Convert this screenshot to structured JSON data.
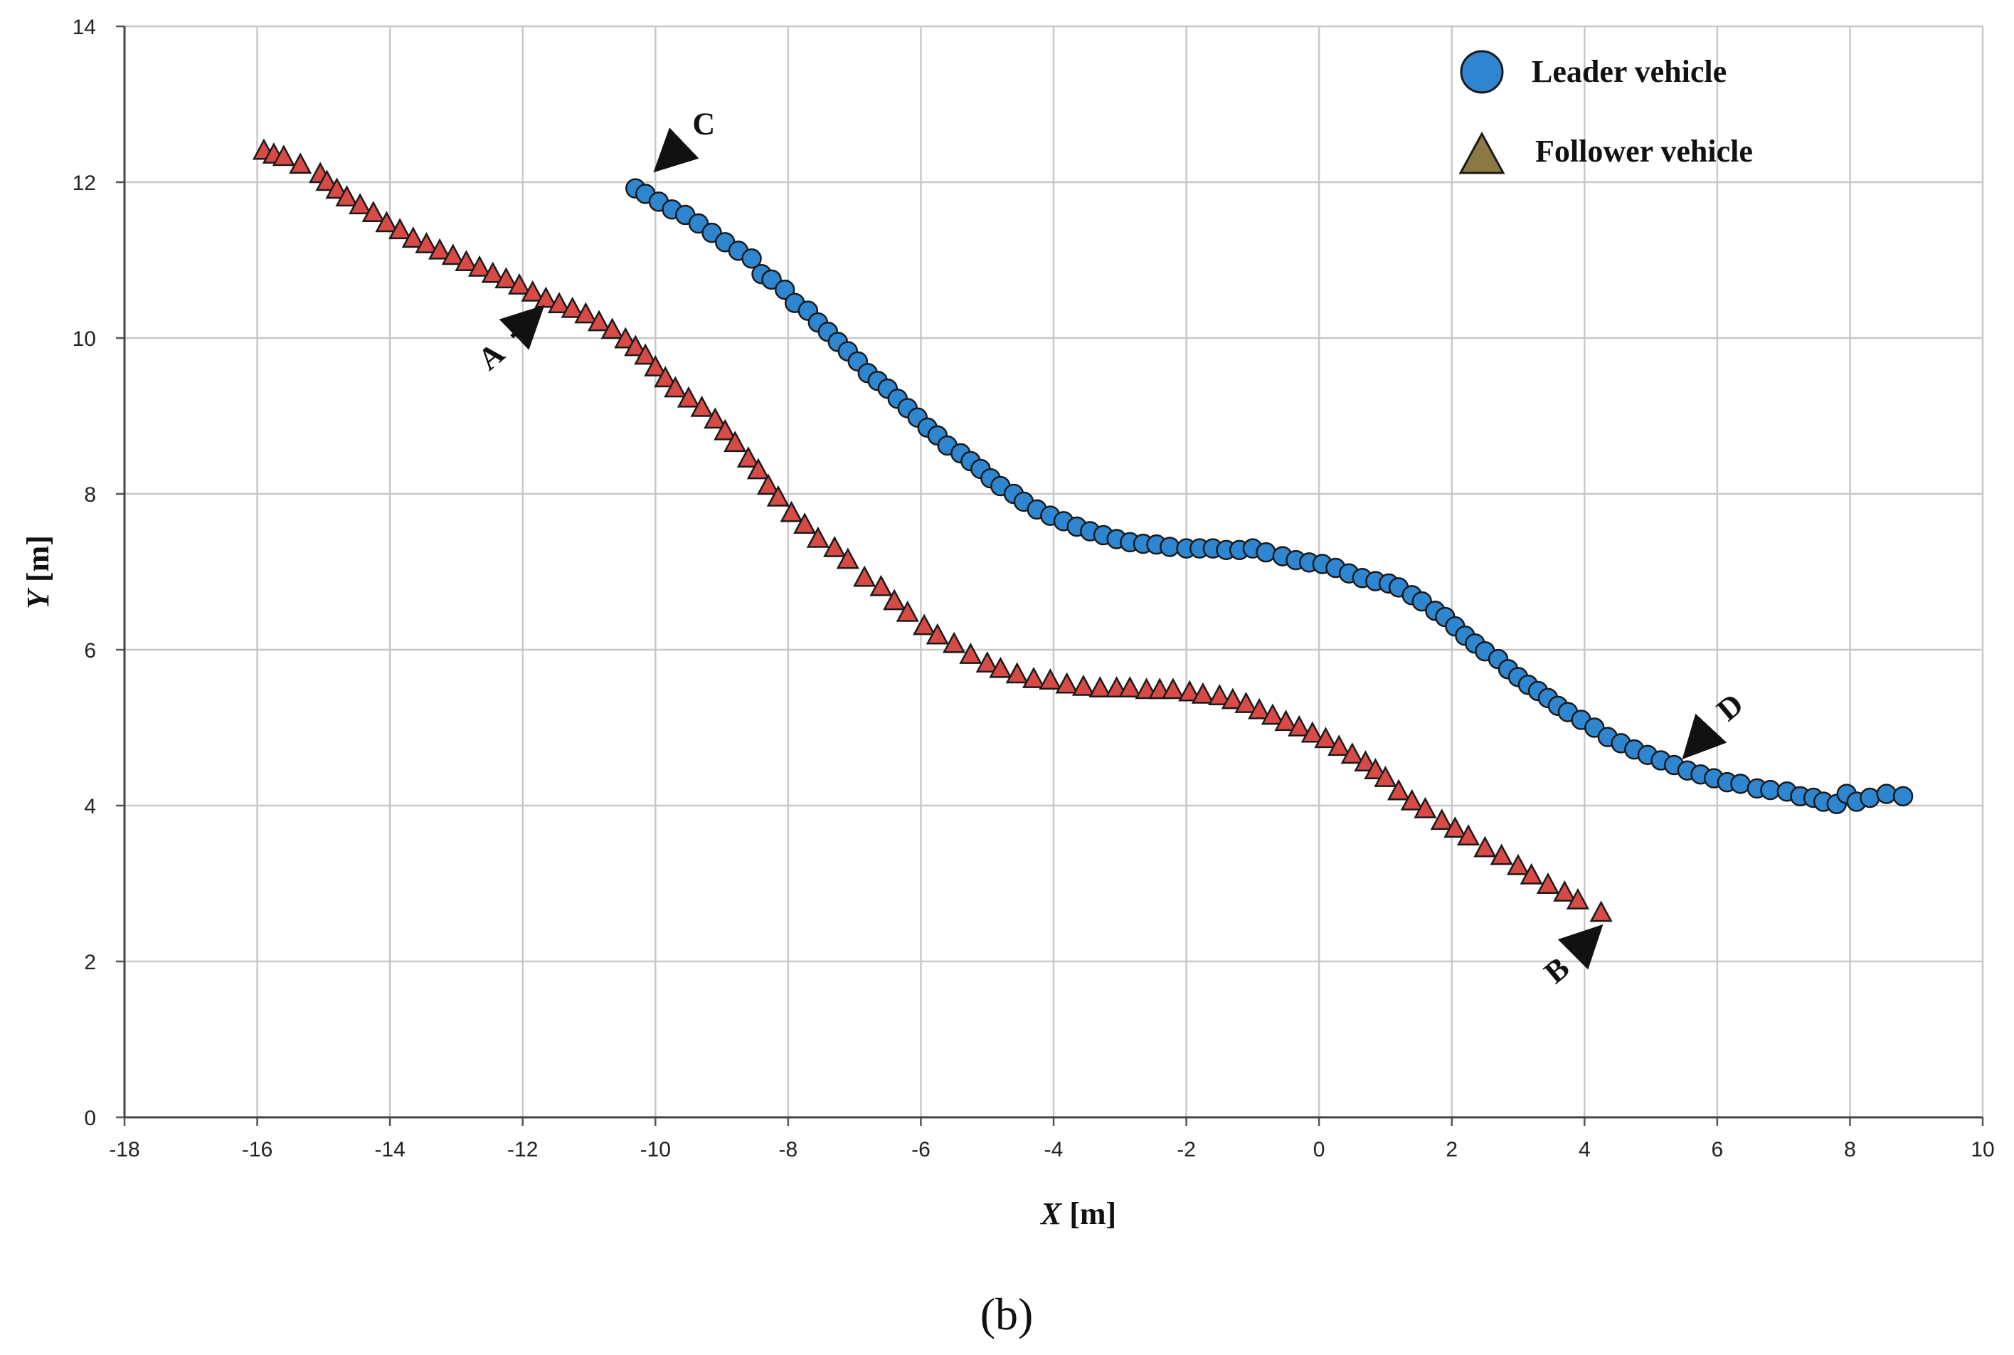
{
  "chart_data": {
    "type": "scatter",
    "xlabel_var": "X",
    "xlabel_unit": " [m]",
    "ylabel_var": "Y",
    "ylabel_unit": " [m]",
    "xlim": [
      -18,
      10
    ],
    "ylim": [
      0,
      14
    ],
    "x_ticks": [
      -18,
      -16,
      -14,
      -12,
      -10,
      -8,
      -6,
      -4,
      -2,
      0,
      2,
      4,
      6,
      8,
      10
    ],
    "y_ticks": [
      0,
      2,
      4,
      6,
      8,
      10,
      12,
      14
    ],
    "grid": true,
    "legend_position": "top-right",
    "panel_label": "(b)",
    "series": [
      {
        "name": "Leader vehicle",
        "marker": "circle",
        "color": "#2f86d0",
        "points": [
          [
            -10.3,
            11.92
          ],
          [
            -10.15,
            11.85
          ],
          [
            -9.95,
            11.75
          ],
          [
            -9.75,
            11.65
          ],
          [
            -9.55,
            11.58
          ],
          [
            -9.35,
            11.47
          ],
          [
            -9.15,
            11.35
          ],
          [
            -8.95,
            11.23
          ],
          [
            -8.75,
            11.12
          ],
          [
            -8.55,
            11.02
          ],
          [
            -8.4,
            10.82
          ],
          [
            -8.25,
            10.75
          ],
          [
            -8.05,
            10.62
          ],
          [
            -7.9,
            10.45
          ],
          [
            -7.7,
            10.35
          ],
          [
            -7.55,
            10.2
          ],
          [
            -7.4,
            10.08
          ],
          [
            -7.25,
            9.95
          ],
          [
            -7.1,
            9.83
          ],
          [
            -6.95,
            9.7
          ],
          [
            -6.8,
            9.55
          ],
          [
            -6.65,
            9.45
          ],
          [
            -6.5,
            9.35
          ],
          [
            -6.35,
            9.22
          ],
          [
            -6.2,
            9.1
          ],
          [
            -6.05,
            8.98
          ],
          [
            -5.9,
            8.85
          ],
          [
            -5.75,
            8.75
          ],
          [
            -5.6,
            8.62
          ],
          [
            -5.4,
            8.52
          ],
          [
            -5.25,
            8.42
          ],
          [
            -5.1,
            8.32
          ],
          [
            -4.95,
            8.2
          ],
          [
            -4.8,
            8.1
          ],
          [
            -4.6,
            8.0
          ],
          [
            -4.45,
            7.9
          ],
          [
            -4.25,
            7.8
          ],
          [
            -4.05,
            7.72
          ],
          [
            -3.85,
            7.65
          ],
          [
            -3.65,
            7.58
          ],
          [
            -3.45,
            7.52
          ],
          [
            -3.25,
            7.47
          ],
          [
            -3.05,
            7.42
          ],
          [
            -2.85,
            7.38
          ],
          [
            -2.65,
            7.36
          ],
          [
            -2.45,
            7.35
          ],
          [
            -2.25,
            7.32
          ],
          [
            -2.0,
            7.3
          ],
          [
            -1.8,
            7.3
          ],
          [
            -1.6,
            7.3
          ],
          [
            -1.4,
            7.28
          ],
          [
            -1.2,
            7.28
          ],
          [
            -1.0,
            7.3
          ],
          [
            -0.8,
            7.25
          ],
          [
            -0.55,
            7.2
          ],
          [
            -0.35,
            7.15
          ],
          [
            -0.15,
            7.12
          ],
          [
            0.05,
            7.1
          ],
          [
            0.25,
            7.05
          ],
          [
            0.45,
            6.98
          ],
          [
            0.65,
            6.92
          ],
          [
            0.85,
            6.88
          ],
          [
            1.05,
            6.85
          ],
          [
            1.2,
            6.8
          ],
          [
            1.4,
            6.7
          ],
          [
            1.55,
            6.62
          ],
          [
            1.75,
            6.5
          ],
          [
            1.9,
            6.42
          ],
          [
            2.05,
            6.3
          ],
          [
            2.2,
            6.18
          ],
          [
            2.35,
            6.08
          ],
          [
            2.5,
            5.98
          ],
          [
            2.7,
            5.88
          ],
          [
            2.85,
            5.75
          ],
          [
            3.0,
            5.65
          ],
          [
            3.15,
            5.55
          ],
          [
            3.3,
            5.47
          ],
          [
            3.45,
            5.38
          ],
          [
            3.6,
            5.28
          ],
          [
            3.75,
            5.2
          ],
          [
            3.95,
            5.1
          ],
          [
            4.15,
            5.0
          ],
          [
            4.35,
            4.88
          ],
          [
            4.55,
            4.8
          ],
          [
            4.75,
            4.72
          ],
          [
            4.95,
            4.65
          ],
          [
            5.15,
            4.58
          ],
          [
            5.35,
            4.52
          ],
          [
            5.55,
            4.45
          ],
          [
            5.75,
            4.4
          ],
          [
            5.95,
            4.35
          ],
          [
            6.15,
            4.3
          ],
          [
            6.35,
            4.28
          ],
          [
            6.6,
            4.22
          ],
          [
            6.8,
            4.2
          ],
          [
            7.05,
            4.18
          ],
          [
            7.25,
            4.12
          ],
          [
            7.45,
            4.1
          ],
          [
            7.6,
            4.05
          ],
          [
            7.8,
            4.02
          ],
          [
            7.95,
            4.15
          ],
          [
            8.1,
            4.05
          ],
          [
            8.3,
            4.1
          ],
          [
            8.55,
            4.15
          ],
          [
            8.8,
            4.12
          ]
        ]
      },
      {
        "name": "Follower vehicle",
        "marker": "triangle",
        "color": "#d84a45",
        "points": [
          [
            -15.9,
            12.4
          ],
          [
            -15.75,
            12.35
          ],
          [
            -15.6,
            12.32
          ],
          [
            -15.35,
            12.22
          ],
          [
            -15.05,
            12.1
          ],
          [
            -14.95,
            12.0
          ],
          [
            -14.8,
            11.9
          ],
          [
            -14.65,
            11.8
          ],
          [
            -14.45,
            11.7
          ],
          [
            -14.25,
            11.6
          ],
          [
            -14.05,
            11.47
          ],
          [
            -13.85,
            11.38
          ],
          [
            -13.65,
            11.27
          ],
          [
            -13.45,
            11.2
          ],
          [
            -13.25,
            11.12
          ],
          [
            -13.05,
            11.05
          ],
          [
            -12.85,
            10.97
          ],
          [
            -12.65,
            10.9
          ],
          [
            -12.45,
            10.82
          ],
          [
            -12.25,
            10.75
          ],
          [
            -12.05,
            10.67
          ],
          [
            -11.85,
            10.58
          ],
          [
            -11.65,
            10.5
          ],
          [
            -11.45,
            10.43
          ],
          [
            -11.25,
            10.37
          ],
          [
            -11.05,
            10.3
          ],
          [
            -10.85,
            10.2
          ],
          [
            -10.65,
            10.1
          ],
          [
            -10.45,
            9.98
          ],
          [
            -10.3,
            9.88
          ],
          [
            -10.15,
            9.77
          ],
          [
            -10.0,
            9.62
          ],
          [
            -9.85,
            9.48
          ],
          [
            -9.7,
            9.35
          ],
          [
            -9.5,
            9.22
          ],
          [
            -9.3,
            9.1
          ],
          [
            -9.1,
            8.95
          ],
          [
            -8.95,
            8.8
          ],
          [
            -8.8,
            8.65
          ],
          [
            -8.6,
            8.45
          ],
          [
            -8.45,
            8.3
          ],
          [
            -8.3,
            8.1
          ],
          [
            -8.15,
            7.95
          ],
          [
            -7.95,
            7.75
          ],
          [
            -7.75,
            7.6
          ],
          [
            -7.55,
            7.42
          ],
          [
            -7.3,
            7.3
          ],
          [
            -7.1,
            7.15
          ],
          [
            -6.85,
            6.92
          ],
          [
            -6.6,
            6.8
          ],
          [
            -6.4,
            6.62
          ],
          [
            -6.2,
            6.47
          ],
          [
            -5.95,
            6.3
          ],
          [
            -5.75,
            6.18
          ],
          [
            -5.5,
            6.07
          ],
          [
            -5.25,
            5.93
          ],
          [
            -5.0,
            5.82
          ],
          [
            -4.8,
            5.75
          ],
          [
            -4.55,
            5.68
          ],
          [
            -4.3,
            5.62
          ],
          [
            -4.05,
            5.6
          ],
          [
            -3.8,
            5.55
          ],
          [
            -3.55,
            5.52
          ],
          [
            -3.3,
            5.5
          ],
          [
            -3.05,
            5.5
          ],
          [
            -2.85,
            5.5
          ],
          [
            -2.6,
            5.48
          ],
          [
            -2.4,
            5.48
          ],
          [
            -2.2,
            5.48
          ],
          [
            -1.95,
            5.45
          ],
          [
            -1.75,
            5.42
          ],
          [
            -1.5,
            5.4
          ],
          [
            -1.3,
            5.35
          ],
          [
            -1.1,
            5.3
          ],
          [
            -0.9,
            5.22
          ],
          [
            -0.7,
            5.15
          ],
          [
            -0.5,
            5.07
          ],
          [
            -0.3,
            5.0
          ],
          [
            -0.1,
            4.92
          ],
          [
            0.1,
            4.85
          ],
          [
            0.3,
            4.75
          ],
          [
            0.5,
            4.65
          ],
          [
            0.7,
            4.55
          ],
          [
            0.85,
            4.45
          ],
          [
            1.0,
            4.35
          ],
          [
            1.2,
            4.18
          ],
          [
            1.4,
            4.05
          ],
          [
            1.6,
            3.95
          ],
          [
            1.85,
            3.8
          ],
          [
            2.05,
            3.7
          ],
          [
            2.25,
            3.6
          ],
          [
            2.5,
            3.45
          ],
          [
            2.75,
            3.35
          ],
          [
            3.0,
            3.22
          ],
          [
            3.2,
            3.1
          ],
          [
            3.45,
            2.98
          ],
          [
            3.7,
            2.88
          ],
          [
            3.9,
            2.78
          ],
          [
            4.25,
            2.62
          ]
        ]
      }
    ],
    "annotations": [
      {
        "label": "A",
        "point": [
          -11.7,
          10.4
        ],
        "text_offset": [
          -72,
          70
        ],
        "text_angle": -40
      },
      {
        "label": "B",
        "point": [
          4.25,
          2.45
        ],
        "text_offset": [
          -62,
          62
        ],
        "text_angle": -40
      },
      {
        "label": "C",
        "point": [
          -10.0,
          12.15
        ],
        "text_offset": [
          68,
          -65
        ],
        "text_angle": 0
      },
      {
        "label": "D",
        "point": [
          5.5,
          4.62
        ],
        "text_offset": [
          65,
          -70
        ],
        "text_angle": -40
      }
    ]
  }
}
